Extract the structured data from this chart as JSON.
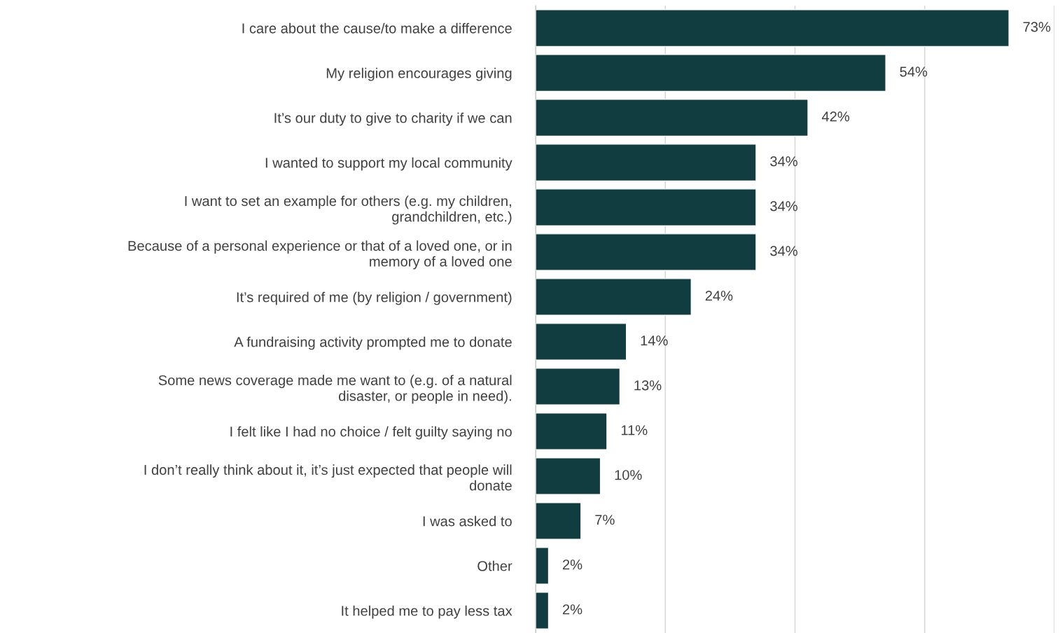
{
  "chart_data": {
    "type": "bar",
    "orientation": "horizontal",
    "categories": [
      "I care about the cause/to make a difference",
      "My religion encourages giving",
      "It’s our duty to give to charity if we can",
      "I wanted to support my local community",
      "I want to set an example for others (e.g. my children,\ngrandchildren, etc.)",
      "Because of a personal experience or that of a loved one, or in\nmemory of a loved one",
      "It’s required of me (by religion / government)",
      "A fundraising activity prompted me to donate",
      "Some news coverage made me want to (e.g. of a natural\ndisaster, or people in need).",
      "I felt like I had no choice / felt guilty saying no",
      "I don’t really think about it, it’s just expected that people will\ndonate",
      "I was asked to",
      "Other",
      "It helped me to pay less tax"
    ],
    "values": [
      73,
      54,
      42,
      34,
      34,
      34,
      24,
      14,
      13,
      11,
      10,
      7,
      2,
      2
    ],
    "value_labels": [
      "73%",
      "54%",
      "42%",
      "34%",
      "34%",
      "34%",
      "24%",
      "14%",
      "13%",
      "11%",
      "10%",
      "7%",
      "2%",
      "2%"
    ],
    "color": "#113d40",
    "xlim": [
      0,
      80
    ],
    "xticks": [
      {
        "value": 0,
        "label": null
      },
      {
        "value": 20,
        "label": null
      },
      {
        "value": 40,
        "label": null
      },
      {
        "value": 60,
        "label": null
      },
      {
        "value": 80,
        "label": null
      }
    ],
    "grid": "x",
    "tick_labels": "y"
  }
}
